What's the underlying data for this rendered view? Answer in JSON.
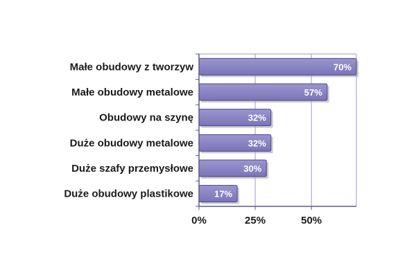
{
  "chart_data": {
    "type": "bar",
    "orientation": "horizontal",
    "categories": [
      "Małe obudowy z tworzyw",
      "Małe obudowy metalowe",
      "Obudowy na szynę",
      "Duże obudowy metalowe",
      "Duże szafy przemysłowe",
      "Duże obudowy plastikowe"
    ],
    "values": [
      70,
      57,
      32,
      32,
      30,
      17
    ],
    "value_labels": [
      "70%",
      "57%",
      "32%",
      "32%",
      "30%",
      "17%"
    ],
    "x_ticks": [
      0,
      25,
      50
    ],
    "x_tick_labels": [
      "0%",
      "25%",
      "50%"
    ],
    "xlim": [
      0,
      70
    ],
    "grid": true,
    "legend": "none"
  },
  "colors": {
    "bar_fill": "#7b74b8",
    "bar_fill_light": "#9b95cf",
    "bar_edge": "#4b4488",
    "bar_shadow": "#a8a8a8",
    "grid": "#9a9ad0",
    "axis": "#5a5a8a"
  }
}
